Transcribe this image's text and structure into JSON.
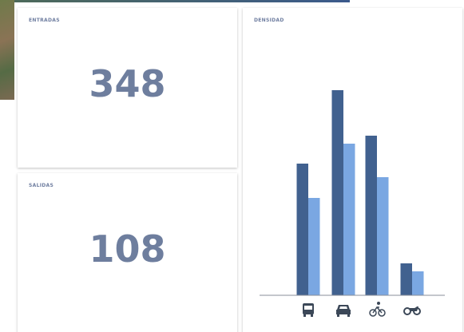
{
  "cards": [
    {
      "title": "ENTRADAS",
      "value": 348
    },
    {
      "title": "SALIDAS",
      "value": 108
    }
  ],
  "chart_data": {
    "type": "bar",
    "title": "DENSIDAD",
    "categories": [
      null,
      null,
      null,
      null
    ],
    "series": [
      {
        "color": "#41618f",
        "values": [
          165,
          257,
          200,
          40
        ]
      },
      {
        "color": "#7aa7e2",
        "values": [
          122,
          190,
          148,
          30
        ]
      }
    ],
    "ylim": [
      0,
      260
    ]
  }
}
